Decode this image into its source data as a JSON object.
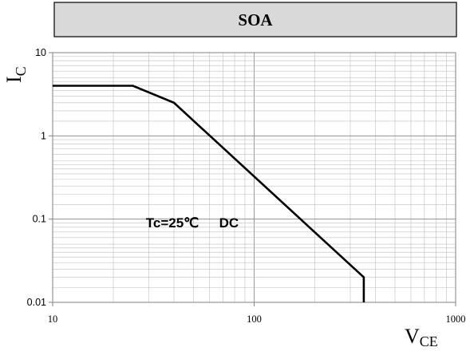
{
  "chart_data": {
    "type": "line",
    "title": "SOA",
    "xlabel": {
      "main": "V",
      "sub": "CE"
    },
    "ylabel": {
      "main": "I",
      "sub": "C"
    },
    "xscale": "log",
    "yscale": "log",
    "xlim": [
      10,
      1000
    ],
    "ylim": [
      0.01,
      10
    ],
    "xticks": [
      10,
      100,
      1000
    ],
    "xticklabels": [
      "10",
      "100",
      "1000"
    ],
    "yticks": [
      0.01,
      0.1,
      1,
      10
    ],
    "yticklabels": [
      "0.01",
      "0.1",
      "1",
      "10"
    ],
    "grid": true,
    "legend": "none",
    "annotations": [
      {
        "text": "Tc=25℃",
        "x": 29,
        "y": 0.08
      },
      {
        "text": "DC",
        "x": 67,
        "y": 0.08
      }
    ],
    "series": [
      {
        "x": [
          10,
          25,
          40,
          350,
          350
        ],
        "y": [
          4,
          4,
          2.5,
          0.02,
          0.01
        ],
        "color": "#000000"
      }
    ]
  }
}
